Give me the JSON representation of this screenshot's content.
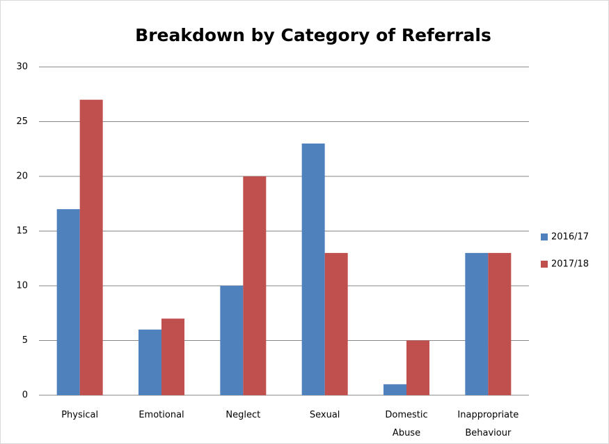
{
  "chart_data": {
    "type": "bar",
    "title": "Breakdown by Category of Referrals",
    "categories": [
      "Physical",
      "Emotional",
      "Neglect",
      "Sexual",
      "Domestic Abuse",
      "Inappropriate Behaviour"
    ],
    "series": [
      {
        "name": "2016/17",
        "color": "#4f81bd",
        "values": [
          17,
          6,
          10,
          23,
          1,
          13
        ]
      },
      {
        "name": "2017/18",
        "color": "#c0504d",
        "values": [
          27,
          7,
          20,
          13,
          5,
          13
        ]
      }
    ],
    "ylim": [
      0,
      30
    ],
    "yticks": [
      0,
      5,
      10,
      15,
      20,
      25,
      30
    ],
    "grid": true,
    "legend": "right"
  }
}
